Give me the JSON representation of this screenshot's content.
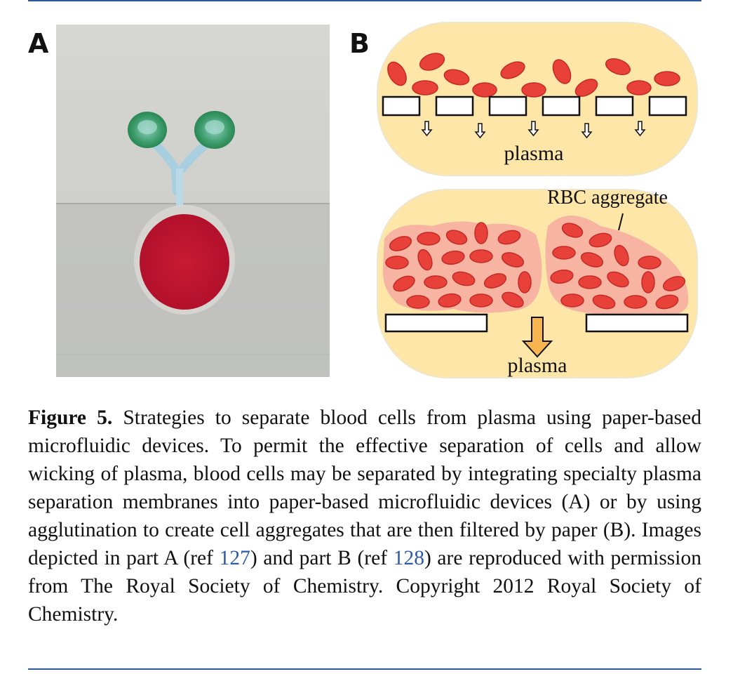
{
  "figure": {
    "panel_a_label": "A",
    "panel_b_label": "B",
    "schematic": {
      "plasma_label_top": "plasma",
      "plasma_label_bottom": "plasma",
      "aggregate_label": "RBC aggregate"
    },
    "caption": {
      "figure_label": "Figure 5.",
      "text_1": " Strategies to separate blood cells from plasma using paper-based microfluidic devices. To permit the effective separation of cells and allow wicking of plasma, blood cells may be separated by integrating specialty plasma separation membranes into paper-based microfluidic devices (A) or by using agglutination to create cell aggregates that are then filtered by paper (B). Images depicted in part A (ref ",
      "ref_1": "127",
      "text_2": ") and part B (ref ",
      "ref_2": "128",
      "text_3": ") are reproduced with permission from The Royal Society of Chemistry. Copyright 2012 Royal Society of Chemistry."
    }
  },
  "colors": {
    "rule": "#2a5a9a",
    "reference_link": "#2c5aa8",
    "rbc": "#e8413a",
    "plasma_fill": "#fde6a8",
    "blood_spot": "#c41230",
    "green_dye": "#2e8a55"
  }
}
